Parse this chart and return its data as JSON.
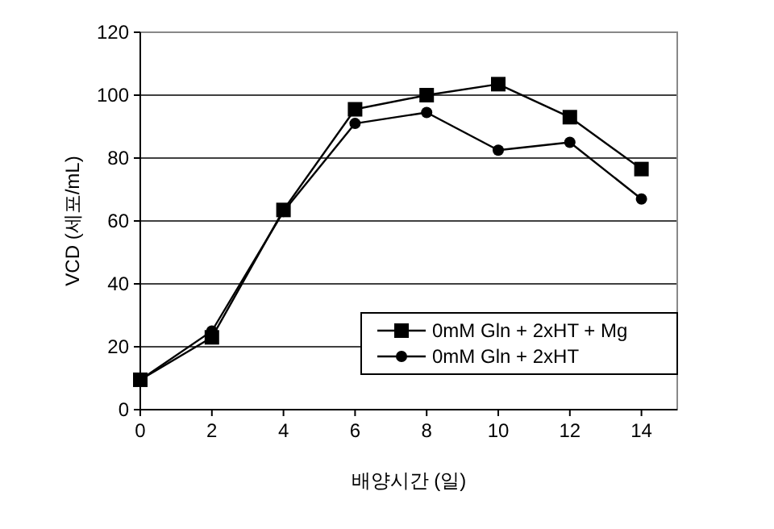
{
  "chart_data": {
    "type": "line",
    "xlabel": "배양시간 (일)",
    "ylabel": "VCD (세포/mL)",
    "x": [
      0,
      2,
      4,
      6,
      8,
      10,
      12,
      14
    ],
    "xlim": [
      0,
      15
    ],
    "xticks": [
      0,
      2,
      4,
      6,
      8,
      10,
      12,
      14
    ],
    "ylim": [
      0,
      120
    ],
    "yticks": [
      0,
      20,
      40,
      60,
      80,
      100,
      120
    ],
    "grid": "y",
    "legend": "bottom right",
    "line_style": "solid",
    "series": [
      {
        "name": "0mM Gln + 2xHT + Mg",
        "color": "#000000",
        "marker": "square",
        "values": [
          9.5,
          23,
          63.5,
          95.5,
          100,
          103.5,
          93,
          76.5
        ]
      },
      {
        "name": "0mM Gln + 2xHT",
        "color": "#000000",
        "marker": "circle",
        "values": [
          9.5,
          25,
          63,
          91,
          94.5,
          82.5,
          85,
          67
        ]
      }
    ]
  }
}
